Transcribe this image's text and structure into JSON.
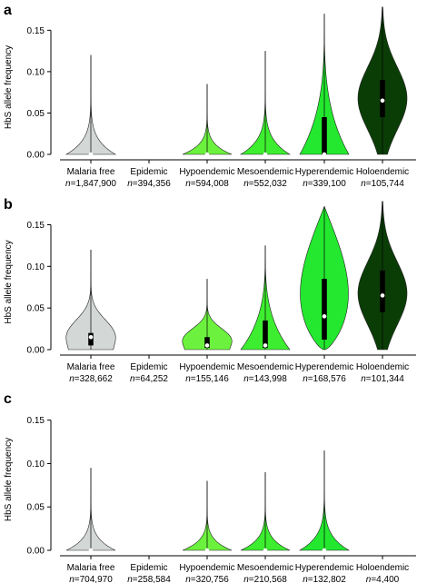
{
  "chart_data": [
    {
      "type": "violin",
      "panel_label": "a",
      "ylabel": "HbS allele frequency",
      "ylim": [
        0,
        0.18
      ],
      "yticks": [
        "0.00",
        "0.05",
        "0.10",
        "0.15"
      ],
      "categories": [
        {
          "name": "Malaria free",
          "n": "1,847,900",
          "color": "#d3d8d6",
          "max": 0.12,
          "shape": "low",
          "median": 0.0,
          "q1": null,
          "q3": null
        },
        {
          "name": "Epidemic",
          "n": "394,356",
          "color": null,
          "max": null,
          "shape": "none",
          "median": null,
          "q1": null,
          "q3": null
        },
        {
          "name": "Hypoendemic",
          "n": "594,008",
          "color": "#6cf23e",
          "max": 0.085,
          "shape": "low",
          "median": 0.0,
          "q1": null,
          "q3": null
        },
        {
          "name": "Mesoendemic",
          "n": "552,032",
          "color": "#3ded2f",
          "max": 0.125,
          "shape": "low",
          "median": 0.0,
          "q1": null,
          "q3": null
        },
        {
          "name": "Hyperendemic",
          "n": "339,100",
          "color": "#23e82f",
          "max": 0.17,
          "shape": "low-wide",
          "median": 0.0,
          "q1": 0.0,
          "q3": 0.045
        },
        {
          "name": "Holoendemic",
          "n": "105,744",
          "color": "#0a3d06",
          "max": 0.178,
          "shape": "mid",
          "median": 0.065,
          "q1": 0.045,
          "q3": 0.09
        }
      ]
    },
    {
      "type": "violin",
      "panel_label": "b",
      "ylabel": "HbS allele frequency",
      "ylim": [
        0,
        0.18
      ],
      "yticks": [
        "0.00",
        "0.05",
        "0.10",
        "0.15"
      ],
      "categories": [
        {
          "name": "Malaria free",
          "n": "328,662",
          "color": "#d3d8d6",
          "max": 0.12,
          "shape": "low-mid",
          "median": 0.015,
          "q1": 0.005,
          "q3": 0.02
        },
        {
          "name": "Epidemic",
          "n": "64,252",
          "color": null,
          "max": null,
          "shape": "none",
          "median": null,
          "q1": null,
          "q3": null
        },
        {
          "name": "Hypoendemic",
          "n": "155,146",
          "color": "#6cf23e",
          "max": 0.085,
          "shape": "low-mid",
          "median": 0.005,
          "q1": 0.002,
          "q3": 0.015
        },
        {
          "name": "Mesoendemic",
          "n": "143,998",
          "color": "#3ded2f",
          "max": 0.125,
          "shape": "low-wide",
          "median": 0.005,
          "q1": 0.002,
          "q3": 0.035
        },
        {
          "name": "Hyperendemic",
          "n": "168,576",
          "color": "#23e82f",
          "max": 0.172,
          "shape": "broad",
          "median": 0.04,
          "q1": 0.012,
          "q3": 0.085
        },
        {
          "name": "Holoendemic",
          "n": "101,344",
          "color": "#0a3d06",
          "max": 0.178,
          "shape": "mid",
          "median": 0.065,
          "q1": 0.045,
          "q3": 0.095
        }
      ]
    },
    {
      "type": "violin",
      "panel_label": "c",
      "ylabel": "HbS allele frequency",
      "ylim": [
        0,
        0.18
      ],
      "yticks": [
        "0.00",
        "0.05",
        "0.10",
        "0.15"
      ],
      "categories": [
        {
          "name": "Malaria free",
          "n": "704,970",
          "color": "#d3d8d6",
          "max": 0.095,
          "shape": "low",
          "median": 0.0,
          "q1": null,
          "q3": null
        },
        {
          "name": "Epidemic",
          "n": "258,584",
          "color": null,
          "max": null,
          "shape": "none",
          "median": null,
          "q1": null,
          "q3": null
        },
        {
          "name": "Hypoendemic",
          "n": "320,756",
          "color": "#6cf23e",
          "max": 0.08,
          "shape": "low",
          "median": 0.0,
          "q1": null,
          "q3": null
        },
        {
          "name": "Mesoendemic",
          "n": "210,568",
          "color": "#3ded2f",
          "max": 0.09,
          "shape": "low",
          "median": 0.0,
          "q1": null,
          "q3": null
        },
        {
          "name": "Hyperendemic",
          "n": "132,802",
          "color": "#23e82f",
          "max": 0.115,
          "shape": "low",
          "median": 0.0,
          "q1": null,
          "q3": null
        },
        {
          "name": "Holoendemic",
          "n": "4,400",
          "color": null,
          "max": null,
          "shape": "none",
          "median": null,
          "q1": null,
          "q3": null
        }
      ]
    }
  ]
}
